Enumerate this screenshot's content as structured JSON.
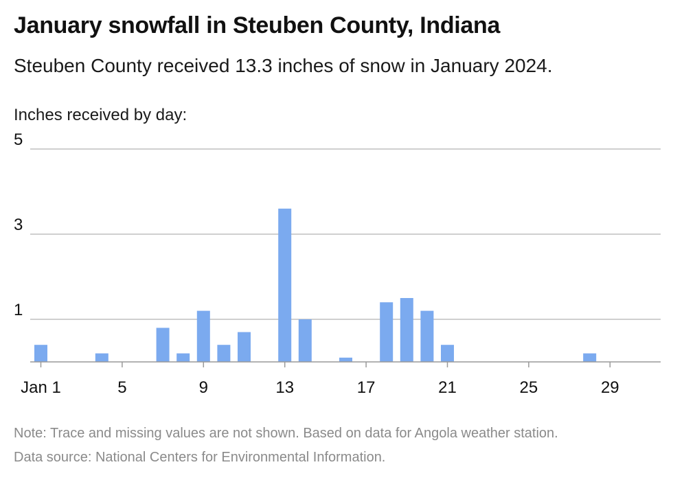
{
  "title": "January snowfall in Steuben County, Indiana",
  "subtitle": "Steuben County received 13.3 inches of snow in January 2024.",
  "y_axis_caption": "Inches received by day:",
  "note": "Note: Trace and missing values are not shown. Based on data for Angola weather station.",
  "source": "Data source: National Centers for Environmental Information.",
  "colors": {
    "bar": "#7baaef",
    "grid": "#bfbfbf",
    "baseline": "#999999",
    "text": "#111111"
  },
  "chart_data": {
    "type": "bar",
    "title": "January snowfall in Steuben County, Indiana",
    "ylabel": "Inches received by day:",
    "xlabel": "",
    "ylim": [
      0,
      5
    ],
    "y_ticks": [
      1,
      3,
      5
    ],
    "x_ticks": [
      {
        "day": 1,
        "label": "Jan 1"
      },
      {
        "day": 5,
        "label": "5"
      },
      {
        "day": 9,
        "label": "9"
      },
      {
        "day": 13,
        "label": "13"
      },
      {
        "day": 17,
        "label": "17"
      },
      {
        "day": 21,
        "label": "21"
      },
      {
        "day": 25,
        "label": "25"
      },
      {
        "day": 29,
        "label": "29"
      }
    ],
    "x_range": [
      1,
      31
    ],
    "grid": true,
    "days": [
      1,
      4,
      7,
      8,
      9,
      10,
      11,
      13,
      14,
      16,
      18,
      19,
      20,
      21,
      28
    ],
    "values": [
      0.4,
      0.2,
      0.8,
      0.2,
      1.2,
      0.4,
      0.7,
      3.6,
      1.0,
      0.1,
      1.4,
      1.5,
      1.2,
      0.4,
      0.2
    ]
  }
}
